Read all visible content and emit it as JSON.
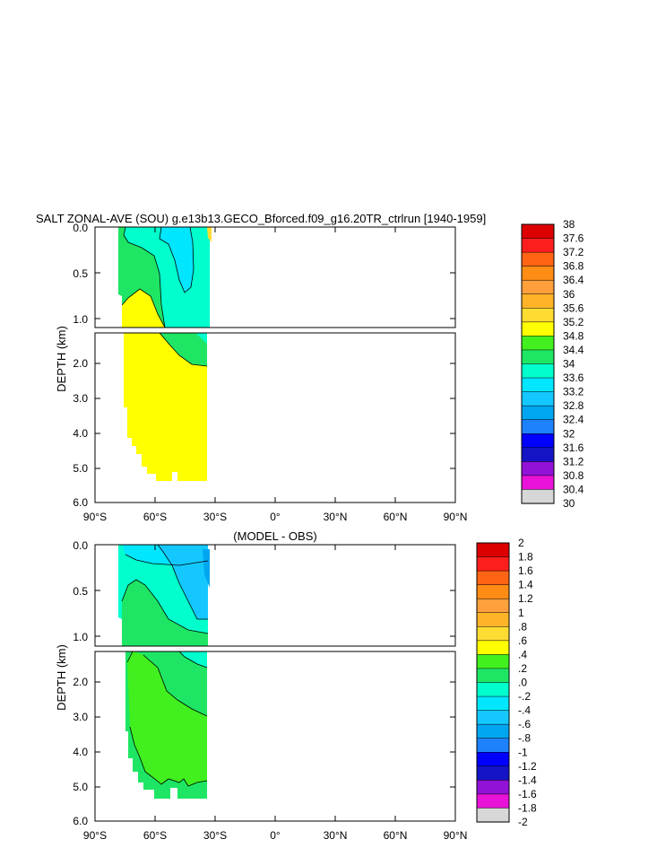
{
  "chart_data": [
    {
      "type": "heatmap",
      "title": "SALT ZONAL-AVE (SOU) g.e13b13.GECO_Bforced.f09_g16.20TR_ctrlrun [1940-1959]",
      "ylabel": "DEPTH (km)",
      "xlabel": "",
      "x_ticks": [
        "90°S",
        "60°S",
        "30°S",
        "0°",
        "30°N",
        "60°N",
        "90°N"
      ],
      "xlim": [
        -90,
        90
      ],
      "upper_panel": {
        "ylim": [
          0.0,
          1.15
        ],
        "y_ticks": [
          "0.0",
          "0.5",
          "1.0"
        ]
      },
      "lower_panel": {
        "ylim": [
          1.15,
          6.0
        ],
        "y_ticks": [
          "2.0",
          "3.0",
          "4.0",
          "5.0",
          "6.0"
        ]
      },
      "colorbar": {
        "labels": [
          "30",
          "30.4",
          "30.8",
          "31.2",
          "31.6",
          "32",
          "32.4",
          "32.8",
          "33.2",
          "33.6",
          "34",
          "34.4",
          "34.8",
          "35.2",
          "35.6",
          "36",
          "36.4",
          "36.8",
          "37.2",
          "37.6",
          "38"
        ],
        "colors": [
          "#6b6b6b",
          "#d7d7d7",
          "#e812d8",
          "#9212d8",
          "#1414c6",
          "#0000ff",
          "#1e82ff",
          "#00a6f0",
          "#14c8ff",
          "#00e6ff",
          "#00ffcc",
          "#1ee664",
          "#41f01e",
          "#ffff00",
          "#ffdc32",
          "#ffb428",
          "#ffa03c",
          "#ff8c14",
          "#ff6414",
          "#ff1e1e",
          "#dc0000",
          "#c00000"
        ]
      }
    },
    {
      "type": "heatmap",
      "title": "(MODEL - OBS)",
      "ylabel": "DEPTH (km)",
      "xlabel": "",
      "x_ticks": [
        "90°S",
        "60°S",
        "30°S",
        "0°",
        "30°N",
        "60°N",
        "90°N"
      ],
      "xlim": [
        -90,
        90
      ],
      "upper_panel": {
        "ylim": [
          0.0,
          1.15
        ],
        "y_ticks": [
          "0.0",
          "0.5",
          "1.0"
        ]
      },
      "lower_panel": {
        "ylim": [
          1.15,
          6.0
        ],
        "y_ticks": [
          "2.0",
          "3.0",
          "4.0",
          "5.0",
          "6.0"
        ]
      },
      "colorbar": {
        "labels": [
          "-2",
          "-1.8",
          "-1.6",
          "-1.4",
          "-1.2",
          "-1",
          "-.8",
          "-.6",
          "-.4",
          "-.2",
          ".0",
          ".2",
          ".4",
          ".6",
          ".8",
          "1",
          "1.2",
          "1.4",
          "1.6",
          "1.8",
          "2"
        ],
        "colors": [
          "#6b6b6b",
          "#d7d7d7",
          "#e812d8",
          "#9212d8",
          "#1414c6",
          "#0000ff",
          "#1e82ff",
          "#00a6f0",
          "#14c8ff",
          "#00e6ff",
          "#00ffcc",
          "#1ee664",
          "#41f01e",
          "#ffff00",
          "#ffdc32",
          "#ffb428",
          "#ffa03c",
          "#ff8c14",
          "#ff6414",
          "#ff1e1e",
          "#dc0000",
          "#c00000"
        ]
      }
    }
  ]
}
